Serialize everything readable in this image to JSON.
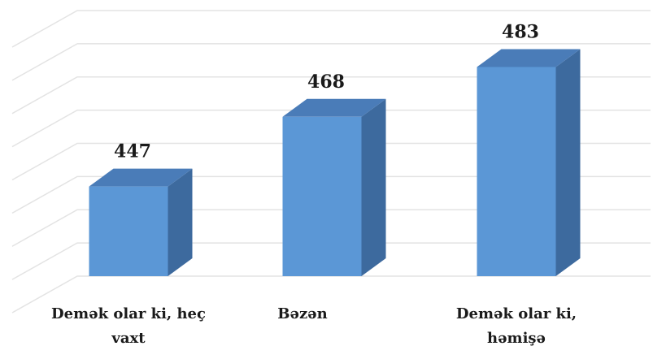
{
  "chart_data": {
    "type": "bar3d",
    "categories": [
      "Demək olar ki, heç vaxt",
      "Bəzən",
      "Demək olar ki, həmişə"
    ],
    "values": [
      447,
      468,
      483
    ],
    "color": "#5b97d6",
    "ylim": [
      420,
      500
    ],
    "yticks": [
      420,
      430,
      440,
      450,
      460,
      470,
      480,
      490,
      500
    ],
    "grid": true
  }
}
